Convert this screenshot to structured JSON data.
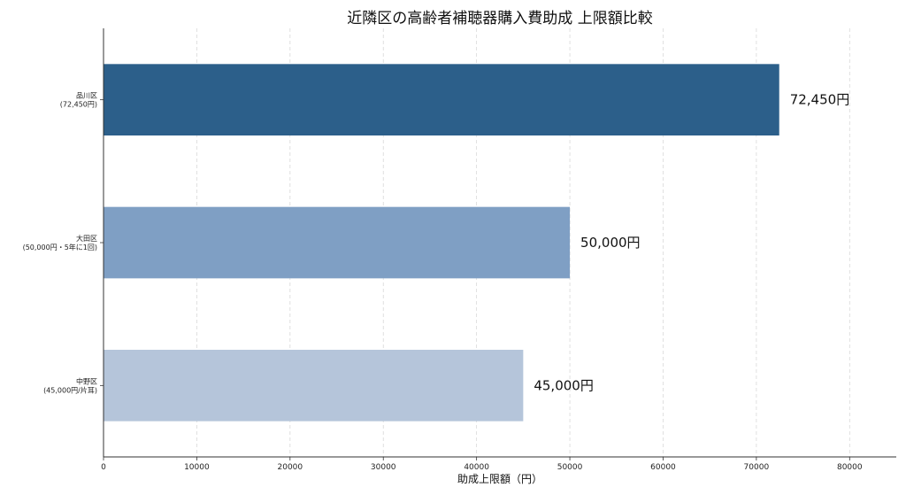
{
  "chart_data": {
    "type": "bar",
    "orientation": "horizontal",
    "title": "近隣区の高齢者補聴器購入費助成 上限額比較",
    "xlabel": "助成上限額（円）",
    "ylabel": "",
    "xlim": [
      0,
      85000
    ],
    "xticks": [
      0,
      10000,
      20000,
      30000,
      40000,
      50000,
      60000,
      70000,
      80000
    ],
    "grid": "vertical dashed",
    "legend": "none",
    "categories": [
      {
        "name": "品川区",
        "note": "(72,450円)"
      },
      {
        "name": "大田区",
        "note": "(50,000円・5年に1回)"
      },
      {
        "name": "中野区",
        "note": "(45,000円/片耳)"
      }
    ],
    "values": [
      72450,
      50000,
      45000
    ],
    "data_labels": [
      "72,450円",
      "50,000円",
      "45,000円"
    ],
    "colors": [
      "#2c5f8a",
      "#7f9fc4",
      "#b5c5da"
    ]
  }
}
